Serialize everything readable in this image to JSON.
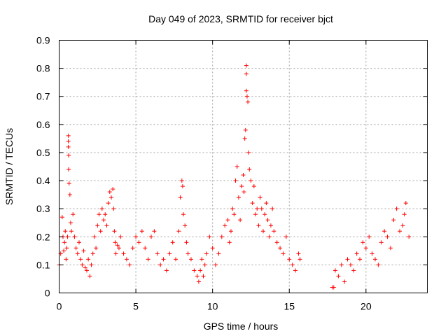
{
  "chart_data": {
    "type": "scatter",
    "title": "Day 049 of 2023, SRMTID for receiver bjct",
    "xlabel": "GPS time / hours",
    "ylabel": "SRMTID / TECUs",
    "xlim": [
      0,
      24
    ],
    "ylim": [
      0,
      0.9
    ],
    "xticks": [
      0,
      5,
      10,
      15,
      20
    ],
    "yticks": [
      0,
      0.1,
      0.2,
      0.3,
      0.4,
      0.5,
      0.6,
      0.7,
      0.8,
      0.9
    ],
    "grid": true,
    "marker": "+",
    "color": "#ff0000",
    "series": [
      {
        "name": "SRMTID",
        "x": [
          0.0,
          0.1,
          0.2,
          0.25,
          0.3,
          0.35,
          0.4,
          0.45,
          0.5,
          0.55,
          0.6,
          0.6,
          0.6,
          0.62,
          0.62,
          0.65,
          0.7,
          0.75,
          0.8,
          0.9,
          1.0,
          1.1,
          1.2,
          1.3,
          1.4,
          1.5,
          1.6,
          1.7,
          1.8,
          1.9,
          2.0,
          2.1,
          2.2,
          2.3,
          2.4,
          2.5,
          2.6,
          2.7,
          2.8,
          2.9,
          3.0,
          3.1,
          3.2,
          3.3,
          3.4,
          3.5,
          3.55,
          3.6,
          3.65,
          3.7,
          3.8,
          3.9,
          4.0,
          4.2,
          4.4,
          4.6,
          4.8,
          5.0,
          5.2,
          5.4,
          5.6,
          5.8,
          6.0,
          6.2,
          6.4,
          6.6,
          6.8,
          7.0,
          7.2,
          7.4,
          7.6,
          7.8,
          7.9,
          8.0,
          8.05,
          8.1,
          8.2,
          8.3,
          8.4,
          8.6,
          8.8,
          9.0,
          9.1,
          9.2,
          9.3,
          9.4,
          9.5,
          9.6,
          9.8,
          10.0,
          10.2,
          10.4,
          10.6,
          10.8,
          11.0,
          11.1,
          11.2,
          11.3,
          11.4,
          11.5,
          11.6,
          11.7,
          11.8,
          11.9,
          12.0,
          12.05,
          12.1,
          12.15,
          12.2,
          12.2,
          12.2,
          12.25,
          12.3,
          12.35,
          12.4,
          12.5,
          12.6,
          12.7,
          12.8,
          12.9,
          13.0,
          13.1,
          13.2,
          13.3,
          13.4,
          13.5,
          13.6,
          13.7,
          13.8,
          13.9,
          14.0,
          14.2,
          14.4,
          14.6,
          14.8,
          15.0,
          15.2,
          15.4,
          15.6,
          15.7,
          17.8,
          17.9,
          18.0,
          18.2,
          18.4,
          18.6,
          18.8,
          19.0,
          19.2,
          19.4,
          19.6,
          19.8,
          20.0,
          20.2,
          20.4,
          20.6,
          20.8,
          21.0,
          21.2,
          21.4,
          21.6,
          21.8,
          22.0,
          22.2,
          22.4,
          22.5,
          22.6,
          22.8
        ],
        "y": [
          0.1,
          0.14,
          0.27,
          0.2,
          0.15,
          0.18,
          0.22,
          0.12,
          0.16,
          0.2,
          0.56,
          0.54,
          0.52,
          0.49,
          0.44,
          0.39,
          0.35,
          0.25,
          0.22,
          0.28,
          0.2,
          0.16,
          0.14,
          0.18,
          0.12,
          0.1,
          0.15,
          0.09,
          0.08,
          0.12,
          0.06,
          0.1,
          0.14,
          0.2,
          0.16,
          0.24,
          0.28,
          0.22,
          0.3,
          0.26,
          0.28,
          0.24,
          0.32,
          0.36,
          0.34,
          0.37,
          0.3,
          0.22,
          0.18,
          0.14,
          0.17,
          0.16,
          0.2,
          0.14,
          0.12,
          0.1,
          0.16,
          0.2,
          0.18,
          0.22,
          0.16,
          0.12,
          0.2,
          0.22,
          0.14,
          0.1,
          0.12,
          0.08,
          0.14,
          0.18,
          0.12,
          0.22,
          0.34,
          0.4,
          0.38,
          0.28,
          0.24,
          0.18,
          0.14,
          0.12,
          0.08,
          0.06,
          0.04,
          0.08,
          0.12,
          0.06,
          0.1,
          0.14,
          0.2,
          0.16,
          0.1,
          0.14,
          0.2,
          0.24,
          0.26,
          0.18,
          0.22,
          0.3,
          0.28,
          0.4,
          0.45,
          0.34,
          0.26,
          0.38,
          0.42,
          0.36,
          0.55,
          0.58,
          0.81,
          0.78,
          0.72,
          0.7,
          0.68,
          0.5,
          0.44,
          0.4,
          0.32,
          0.38,
          0.28,
          0.3,
          0.24,
          0.34,
          0.3,
          0.22,
          0.28,
          0.32,
          0.26,
          0.2,
          0.24,
          0.3,
          0.22,
          0.18,
          0.16,
          0.14,
          0.2,
          0.12,
          0.1,
          0.08,
          0.14,
          0.12,
          0.02,
          0.02,
          0.08,
          0.06,
          0.1,
          0.04,
          0.12,
          0.1,
          0.08,
          0.14,
          0.12,
          0.18,
          0.16,
          0.2,
          0.14,
          0.12,
          0.1,
          0.18,
          0.22,
          0.2,
          0.16,
          0.26,
          0.3,
          0.22,
          0.24,
          0.28,
          0.32,
          0.2
        ]
      }
    ]
  }
}
